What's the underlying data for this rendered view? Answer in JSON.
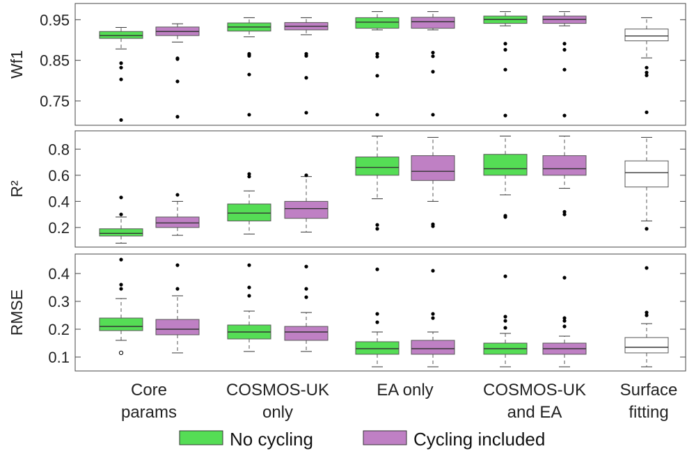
{
  "chart_data": {
    "type": "box",
    "categories": [
      "Core params",
      "COSMOS-UK only",
      "EA only",
      "COSMOS-UK and EA",
      "Surface fitting"
    ],
    "category_lines": [
      [
        "Core",
        "params"
      ],
      [
        "COSMOS-UK",
        "only"
      ],
      [
        "EA only"
      ],
      [
        "COSMOS-UK",
        "and EA"
      ],
      [
        "Surface",
        "fitting"
      ]
    ],
    "legend": {
      "placement": "bottom",
      "entries": [
        {
          "label": "No cycling",
          "color": "#55dd55"
        },
        {
          "label": "Cycling included",
          "color": "#bf80c4"
        }
      ]
    },
    "reference_color": "#ffffff",
    "panels": [
      {
        "ylabel": "Wf1",
        "ylim": [
          0.69,
          0.99
        ],
        "yticks": [
          0.75,
          0.85,
          0.95
        ],
        "ytick_labels": [
          "0.75",
          "0.85",
          "0.95"
        ],
        "boxes": [
          {
            "category": 0,
            "series": 0,
            "whislo": 0.878,
            "q1": 0.904,
            "med": 0.911,
            "q3": 0.921,
            "whishi": 0.931,
            "fliers": [
              0.843,
              0.832,
              0.803,
              0.703
            ]
          },
          {
            "category": 0,
            "series": 1,
            "whislo": 0.895,
            "q1": 0.911,
            "med": 0.921,
            "q3": 0.932,
            "whishi": 0.94,
            "fliers": [
              0.855,
              0.853,
              0.798,
              0.711
            ]
          },
          {
            "category": 1,
            "series": 0,
            "whislo": 0.908,
            "q1": 0.922,
            "med": 0.932,
            "q3": 0.942,
            "whishi": 0.955,
            "fliers": [
              0.866,
              0.864,
              0.861,
              0.815,
              0.716
            ]
          },
          {
            "category": 1,
            "series": 1,
            "whislo": 0.913,
            "q1": 0.925,
            "med": 0.934,
            "q3": 0.943,
            "whishi": 0.955,
            "fliers": [
              0.866,
              0.861,
              0.807,
              0.721
            ]
          },
          {
            "category": 2,
            "series": 0,
            "whislo": 0.925,
            "q1": 0.929,
            "med": 0.944,
            "q3": 0.955,
            "whishi": 0.97,
            "fliers": [
              0.866,
              0.859,
              0.812,
              0.716
            ]
          },
          {
            "category": 2,
            "series": 1,
            "whislo": 0.925,
            "q1": 0.929,
            "med": 0.945,
            "q3": 0.956,
            "whishi": 0.97,
            "fliers": [
              0.869,
              0.86,
              0.822,
              0.716
            ]
          },
          {
            "category": 3,
            "series": 0,
            "whislo": 0.935,
            "q1": 0.941,
            "med": 0.951,
            "q3": 0.959,
            "whishi": 0.97,
            "fliers": [
              0.891,
              0.876,
              0.827,
              0.714
            ]
          },
          {
            "category": 3,
            "series": 1,
            "whislo": 0.935,
            "q1": 0.941,
            "med": 0.951,
            "q3": 0.959,
            "whishi": 0.97,
            "fliers": [
              0.891,
              0.876,
              0.827,
              0.714
            ]
          },
          {
            "category": 4,
            "series": 2,
            "whislo": 0.856,
            "q1": 0.898,
            "med": 0.91,
            "q3": 0.927,
            "whishi": 0.955,
            "fliers": [
              0.832,
              0.82,
              0.813,
              0.722
            ]
          }
        ]
      },
      {
        "ylabel": "R²",
        "ylim": [
          0.05,
          0.94
        ],
        "yticks": [
          0.2,
          0.4,
          0.6,
          0.8
        ],
        "ytick_labels": [
          "0.2",
          "0.4",
          "0.6",
          "0.8"
        ],
        "boxes": [
          {
            "category": 0,
            "series": 0,
            "whislo": 0.08,
            "q1": 0.135,
            "med": 0.155,
            "q3": 0.19,
            "whishi": 0.28,
            "fliers": [
              0.43,
              0.3
            ]
          },
          {
            "category": 0,
            "series": 1,
            "whislo": 0.14,
            "q1": 0.2,
            "med": 0.235,
            "q3": 0.28,
            "whishi": 0.4,
            "fliers": [
              0.45
            ]
          },
          {
            "category": 1,
            "series": 0,
            "whislo": 0.15,
            "q1": 0.25,
            "med": 0.31,
            "q3": 0.38,
            "whishi": 0.48,
            "fliers": [
              0.61,
              0.59
            ]
          },
          {
            "category": 1,
            "series": 1,
            "whislo": 0.165,
            "q1": 0.27,
            "med": 0.345,
            "q3": 0.4,
            "whishi": 0.59,
            "fliers": [
              0.6
            ]
          },
          {
            "category": 2,
            "series": 0,
            "whislo": 0.42,
            "q1": 0.6,
            "med": 0.66,
            "q3": 0.74,
            "whishi": 0.9,
            "fliers": [
              0.22,
              0.19
            ]
          },
          {
            "category": 2,
            "series": 1,
            "whislo": 0.4,
            "q1": 0.56,
            "med": 0.63,
            "q3": 0.75,
            "whishi": 0.89,
            "fliers": [
              0.225,
              0.21
            ]
          },
          {
            "category": 3,
            "series": 0,
            "whislo": 0.45,
            "q1": 0.6,
            "med": 0.65,
            "q3": 0.76,
            "whishi": 0.9,
            "fliers": [
              0.29,
              0.28
            ]
          },
          {
            "category": 3,
            "series": 1,
            "whislo": 0.5,
            "q1": 0.6,
            "med": 0.65,
            "q3": 0.75,
            "whishi": 0.9,
            "fliers": [
              0.32,
              0.3
            ]
          },
          {
            "category": 4,
            "series": 2,
            "whislo": 0.25,
            "q1": 0.51,
            "med": 0.62,
            "q3": 0.71,
            "whishi": 0.89,
            "fliers": [
              0.19
            ]
          }
        ]
      },
      {
        "ylabel": "RMSE",
        "ylim": [
          0.05,
          0.47
        ],
        "yticks": [
          0.1,
          0.2,
          0.3,
          0.4
        ],
        "ytick_labels": [
          "0.1",
          "0.2",
          "0.3",
          "0.4"
        ],
        "boxes": [
          {
            "category": 0,
            "series": 0,
            "whislo": 0.16,
            "q1": 0.195,
            "med": 0.21,
            "q3": 0.24,
            "whishi": 0.31,
            "fliers": [
              0.45,
              0.36,
              0.345
            ],
            "open_fliers": [
              0.115
            ]
          },
          {
            "category": 0,
            "series": 1,
            "whislo": 0.115,
            "q1": 0.18,
            "med": 0.2,
            "q3": 0.235,
            "whishi": 0.32,
            "fliers": [
              0.43,
              0.345
            ]
          },
          {
            "category": 1,
            "series": 0,
            "whislo": 0.12,
            "q1": 0.165,
            "med": 0.19,
            "q3": 0.215,
            "whishi": 0.265,
            "fliers": [
              0.43,
              0.35,
              0.32
            ]
          },
          {
            "category": 1,
            "series": 1,
            "whislo": 0.12,
            "q1": 0.16,
            "med": 0.19,
            "q3": 0.21,
            "whishi": 0.26,
            "fliers": [
              0.425,
              0.345,
              0.315
            ]
          },
          {
            "category": 2,
            "series": 0,
            "whislo": 0.065,
            "q1": 0.11,
            "med": 0.13,
            "q3": 0.155,
            "whishi": 0.19,
            "fliers": [
              0.415,
              0.255,
              0.225
            ]
          },
          {
            "category": 2,
            "series": 1,
            "whislo": 0.065,
            "q1": 0.11,
            "med": 0.13,
            "q3": 0.16,
            "whishi": 0.19,
            "fliers": [
              0.41,
              0.255,
              0.24
            ]
          },
          {
            "category": 3,
            "series": 0,
            "whislo": 0.065,
            "q1": 0.11,
            "med": 0.13,
            "q3": 0.15,
            "whishi": 0.185,
            "fliers": [
              0.39,
              0.245,
              0.23,
              0.205
            ]
          },
          {
            "category": 3,
            "series": 1,
            "whislo": 0.065,
            "q1": 0.11,
            "med": 0.13,
            "q3": 0.15,
            "whishi": 0.175,
            "fliers": [
              0.385,
              0.24,
              0.23,
              0.21
            ]
          },
          {
            "category": 4,
            "series": 2,
            "whislo": 0.065,
            "q1": 0.115,
            "med": 0.135,
            "q3": 0.17,
            "whishi": 0.22,
            "fliers": [
              0.42,
              0.26,
              0.25
            ]
          }
        ]
      }
    ]
  }
}
